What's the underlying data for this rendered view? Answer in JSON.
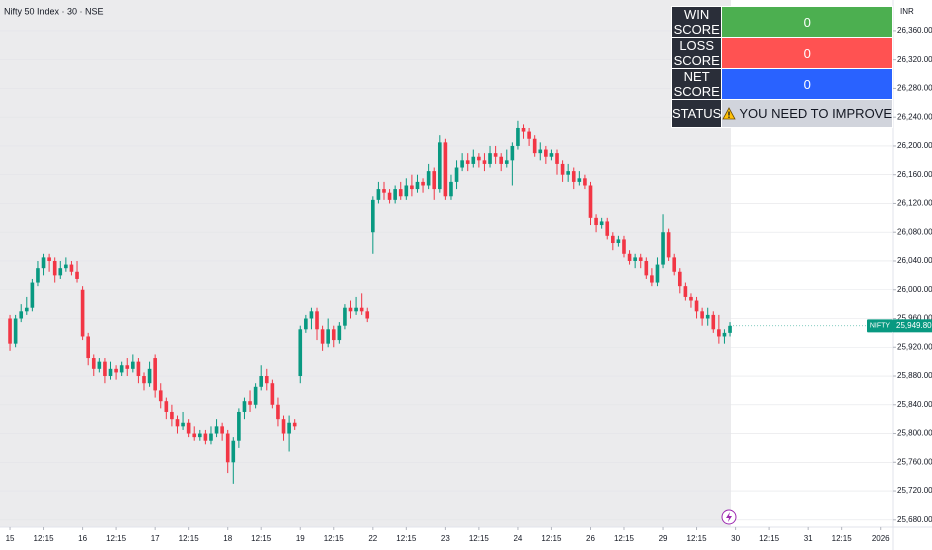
{
  "chart_data": {
    "type": "candlestick",
    "title": "Nifty 50 Index · 30 · NSE",
    "currency": "INR",
    "symbol": "NIFTY",
    "last_price_label": "25,949.80",
    "up_color": "#089981",
    "down_color": "#f23645",
    "grid": true,
    "xlim": [
      -1.8,
      158.2
    ],
    "ylim": [
      25670,
      26403
    ],
    "xticks": [
      {
        "value": 0,
        "label": "15"
      },
      {
        "value": 6,
        "label": "12:15"
      },
      {
        "value": 13,
        "label": "16"
      },
      {
        "value": 19,
        "label": "12:15"
      },
      {
        "value": 26,
        "label": "17"
      },
      {
        "value": 32,
        "label": "12:15"
      },
      {
        "value": 39,
        "label": "18"
      },
      {
        "value": 45,
        "label": "12:15"
      },
      {
        "value": 52,
        "label": "19"
      },
      {
        "value": 58,
        "label": "12:15"
      },
      {
        "value": 65,
        "label": "22"
      },
      {
        "value": 71,
        "label": "12:15"
      },
      {
        "value": 78,
        "label": "23"
      },
      {
        "value": 84,
        "label": "12:15"
      },
      {
        "value": 91,
        "label": "24"
      },
      {
        "value": 97,
        "label": "12:15"
      },
      {
        "value": 104,
        "label": "26"
      },
      {
        "value": 110,
        "label": "12:15"
      },
      {
        "value": 117,
        "label": "29"
      },
      {
        "value": 123,
        "label": "12:15"
      },
      {
        "value": 130,
        "label": "30"
      },
      {
        "value": 136,
        "label": "12:15"
      },
      {
        "value": 143,
        "label": "31"
      },
      {
        "value": 149,
        "label": "12:15"
      },
      {
        "value": 156,
        "label": "2026"
      }
    ],
    "yticks": [
      {
        "value": 26360,
        "label": "26,360.00"
      },
      {
        "value": 26320,
        "label": "26,320.00"
      },
      {
        "value": 26280,
        "label": "26,280.00"
      },
      {
        "value": 26240,
        "label": "26,240.00"
      },
      {
        "value": 26200,
        "label": "26,200.00"
      },
      {
        "value": 26160,
        "label": "26,160.00"
      },
      {
        "value": 26120,
        "label": "26,120.00"
      },
      {
        "value": 26080,
        "label": "26,080.00"
      },
      {
        "value": 26040,
        "label": "26,040.00"
      },
      {
        "value": 26000,
        "label": "26,000.00"
      },
      {
        "value": 25960,
        "label": "25,960.00"
      },
      {
        "value": 25920,
        "label": "25,920.00"
      },
      {
        "value": 25880,
        "label": "25,880.00"
      },
      {
        "value": 25840,
        "label": "25,840.00"
      },
      {
        "value": 25800,
        "label": "25,800.00"
      },
      {
        "value": 25760,
        "label": "25,760.00"
      },
      {
        "value": 25720,
        "label": "25,720.00"
      },
      {
        "value": 25680,
        "label": "25,680.00"
      }
    ],
    "open": [
      25960,
      25925,
      25960,
      25970,
      25975,
      26010,
      26030,
      26045,
      26040,
      26020,
      26030,
      26035,
      26025,
      26000,
      25935,
      25905,
      25890,
      25900,
      25880,
      25890,
      25885,
      25895,
      25890,
      25900,
      25880,
      25870,
      25905,
      25860,
      25845,
      25830,
      25820,
      25810,
      25815,
      25800,
      25795,
      25800,
      25790,
      25800,
      25810,
      25800,
      25760,
      25790,
      25830,
      25845,
      25840,
      25865,
      25880,
      25870,
      25840,
      25820,
      25800,
      25815,
      25880,
      25945,
      25960,
      25970,
      25945,
      25925,
      25945,
      25930,
      25950,
      25975,
      25970,
      25975,
      25970,
      26080,
      26125,
      26140,
      26135,
      26125,
      26140,
      26130,
      26145,
      26140,
      26150,
      26145,
      26165,
      26140,
      26205,
      26130,
      26150,
      26170,
      26180,
      26175,
      26185,
      26180,
      26175,
      26190,
      26185,
      26175,
      26180,
      26200,
      26225,
      26220,
      26210,
      26190,
      26195,
      26185,
      26190,
      26175,
      26160,
      26165,
      26150,
      26155,
      26145,
      26100,
      26090,
      26095,
      26075,
      26065,
      26070,
      26050,
      26040,
      26045,
      26040,
      26020,
      26010,
      26035,
      26080,
      26045,
      26025,
      26005,
      25990,
      25985,
      25970,
      25960,
      25965,
      25945,
      25935,
      25940
    ],
    "high": [
      25965,
      25965,
      25980,
      25990,
      26015,
      26040,
      26050,
      26050,
      26045,
      26040,
      26045,
      26040,
      26040,
      26005,
      25940,
      25910,
      25905,
      25905,
      25900,
      25895,
      25900,
      25905,
      25910,
      25905,
      25885,
      25900,
      25910,
      25870,
      25850,
      25840,
      25825,
      25830,
      25820,
      25810,
      25805,
      25805,
      25810,
      25820,
      25815,
      25805,
      25795,
      25835,
      25850,
      25860,
      25870,
      25895,
      25890,
      25875,
      25850,
      25825,
      25825,
      25820,
      25950,
      25965,
      25975,
      25975,
      25950,
      25960,
      25950,
      25955,
      25980,
      25985,
      25990,
      25995,
      25975,
      26130,
      26150,
      26150,
      26140,
      26145,
      26150,
      26155,
      26160,
      26160,
      26155,
      26175,
      26170,
      26215,
      26210,
      26160,
      26180,
      26190,
      26190,
      26195,
      26190,
      26190,
      26200,
      26200,
      26190,
      26195,
      26205,
      26235,
      26230,
      26225,
      26215,
      26205,
      26200,
      26195,
      26195,
      26180,
      26175,
      26170,
      26165,
      26160,
      26150,
      26105,
      26100,
      26100,
      26080,
      26075,
      26075,
      26055,
      26050,
      26050,
      26045,
      26030,
      26045,
      26105,
      26085,
      26050,
      26030,
      26010,
      25995,
      25990,
      25975,
      25975,
      25970,
      25965,
      25945,
      25955
    ],
    "low": [
      25915,
      25920,
      25955,
      25965,
      25970,
      26005,
      26020,
      26025,
      26010,
      26015,
      26025,
      26020,
      26010,
      25930,
      25895,
      25880,
      25885,
      25870,
      25875,
      25875,
      25880,
      25880,
      25885,
      25870,
      25860,
      25865,
      25850,
      25835,
      25820,
      25810,
      25800,
      25805,
      25795,
      25790,
      25790,
      25785,
      25785,
      25795,
      25790,
      25745,
      25730,
      25780,
      25820,
      25830,
      25835,
      25860,
      25860,
      25835,
      25810,
      25790,
      25775,
      25805,
      25870,
      25940,
      25945,
      25930,
      25915,
      25920,
      25920,
      25925,
      25945,
      25960,
      25965,
      25965,
      25955,
      26050,
      26120,
      26125,
      26120,
      26120,
      26125,
      26125,
      26130,
      26135,
      26135,
      26140,
      26125,
      26135,
      26125,
      26125,
      26140,
      26165,
      26165,
      26170,
      26170,
      26165,
      26170,
      26175,
      26165,
      26170,
      26145,
      26195,
      26210,
      26200,
      26185,
      26180,
      26175,
      26180,
      26160,
      26150,
      26150,
      26140,
      26145,
      26140,
      26090,
      26080,
      26085,
      26070,
      26055,
      26060,
      26045,
      26035,
      26030,
      26030,
      26015,
      26005,
      26005,
      26030,
      26040,
      26020,
      25995,
      25985,
      25975,
      25960,
      25950,
      25950,
      25940,
      25925,
      25925,
      25935
    ],
    "close": [
      25925,
      25960,
      25970,
      25975,
      26010,
      26030,
      26045,
      26040,
      26020,
      26030,
      26035,
      26025,
      26015,
      25935,
      25905,
      25890,
      25900,
      25880,
      25890,
      25885,
      25895,
      25890,
      25900,
      25880,
      25870,
      25890,
      25860,
      25845,
      25830,
      25820,
      25810,
      25815,
      25800,
      25795,
      25800,
      25790,
      25800,
      25810,
      25800,
      25760,
      25790,
      25830,
      25845,
      25840,
      25865,
      25880,
      25870,
      25840,
      25820,
      25800,
      25815,
      25810,
      25945,
      25960,
      25970,
      25945,
      25925,
      25945,
      25930,
      25950,
      25975,
      25970,
      25975,
      25970,
      25960,
      26125,
      26140,
      26135,
      26125,
      26140,
      26130,
      26145,
      26140,
      26150,
      26145,
      26165,
      26140,
      26205,
      26130,
      26150,
      26170,
      26180,
      26175,
      26185,
      26180,
      26175,
      26190,
      26185,
      26175,
      26180,
      26200,
      26225,
      26220,
      26210,
      26190,
      26195,
      26185,
      26190,
      26175,
      26160,
      26165,
      26150,
      26155,
      26145,
      26100,
      26090,
      26095,
      26075,
      26065,
      26070,
      26050,
      26040,
      26045,
      26040,
      26020,
      26010,
      26035,
      26080,
      26045,
      26025,
      26005,
      25990,
      25985,
      25970,
      25960,
      25965,
      25945,
      25935,
      25940,
      25949.8
    ]
  },
  "table": {
    "rows": [
      {
        "label": "WIN SCORE",
        "value": 0
      },
      {
        "label": "LOSS SCORE",
        "value": 0
      },
      {
        "label": "NET SCORE",
        "value": 0
      },
      {
        "label": "STATUS",
        "value": "YOU NEED TO IMPROVE"
      }
    ]
  }
}
